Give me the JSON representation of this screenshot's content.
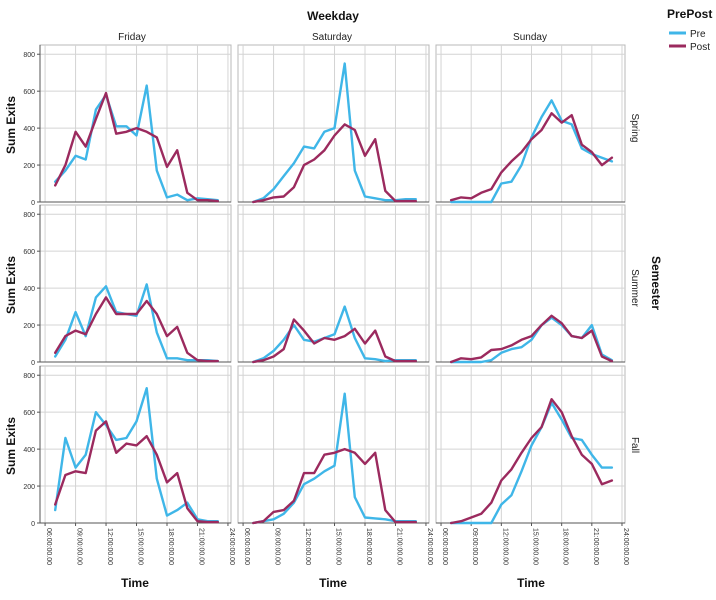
{
  "chart_data": {
    "type": "line",
    "title": "Weekday",
    "row_title": "Semester",
    "xlabel": "Time",
    "ylabel": "Sum Exits",
    "legend": {
      "title": "PrePost",
      "position": "top-right",
      "entries": [
        {
          "name": "Pre",
          "color": "#3fb6e8"
        },
        {
          "name": "Post",
          "color": "#9b2a5e"
        }
      ]
    },
    "columns": [
      "Friday",
      "Saturday",
      "Sunday"
    ],
    "rows": [
      "Spring",
      "Summer",
      "Fall"
    ],
    "ylim": [
      0,
      850
    ],
    "yticks": [
      0,
      200,
      400,
      600,
      800
    ],
    "ytick_labels": [
      "0",
      "200",
      "400",
      "600",
      "800"
    ],
    "xlim": [
      5.5,
      24.3
    ],
    "xticks": [
      6,
      9,
      12,
      15,
      18,
      21,
      24
    ],
    "xtick_labels": [
      "06:00:00.00",
      "09:00:00.00",
      "12:00:00.00",
      "15:00:00.00",
      "18:00:00.00",
      "21:00:00.00",
      "24:00:00.00"
    ],
    "x_hours": [
      7,
      8,
      9,
      10,
      11,
      12,
      13,
      14,
      15,
      16,
      17,
      18,
      19,
      20,
      21,
      22,
      23
    ],
    "panels": [
      {
        "row": "Spring",
        "col": "Friday",
        "series": [
          {
            "name": "Pre",
            "values": [
              110,
              170,
              250,
              230,
              500,
              580,
              410,
              410,
              360,
              630,
              170,
              25,
              40,
              10,
              20,
              15,
              10
            ]
          },
          {
            "name": "Post",
            "values": [
              90,
              200,
              380,
              300,
              450,
              590,
              370,
              380,
              400,
              380,
              350,
              190,
              280,
              50,
              10,
              10,
              5
            ]
          }
        ]
      },
      {
        "row": "Spring",
        "col": "Saturday",
        "series": [
          {
            "name": "Pre",
            "values": [
              0,
              20,
              70,
              140,
              210,
              300,
              290,
              380,
              400,
              750,
              170,
              30,
              20,
              10,
              10,
              15,
              15
            ]
          },
          {
            "name": "Post",
            "values": [
              0,
              10,
              25,
              30,
              80,
              200,
              230,
              280,
              360,
              420,
              390,
              250,
              340,
              60,
              5,
              5,
              5
            ]
          }
        ]
      },
      {
        "row": "Spring",
        "col": "Sunday",
        "series": [
          {
            "name": "Pre",
            "values": [
              0,
              0,
              0,
              0,
              0,
              100,
              110,
              200,
              350,
              460,
              550,
              440,
              420,
              290,
              260,
              240,
              220
            ]
          },
          {
            "name": "Post",
            "values": [
              10,
              25,
              20,
              50,
              70,
              160,
              220,
              270,
              340,
              390,
              480,
              430,
              470,
              310,
              270,
              200,
              240
            ]
          }
        ]
      },
      {
        "row": "Summer",
        "col": "Friday",
        "series": [
          {
            "name": "Pre",
            "values": [
              30,
              120,
              270,
              140,
              350,
              410,
              270,
              260,
              250,
              420,
              160,
              20,
              20,
              10,
              10,
              10,
              5
            ]
          },
          {
            "name": "Post",
            "values": [
              50,
              140,
              170,
              150,
              260,
              350,
              260,
              260,
              260,
              330,
              260,
              140,
              190,
              50,
              10,
              5,
              5
            ]
          }
        ]
      },
      {
        "row": "Summer",
        "col": "Saturday",
        "series": [
          {
            "name": "Pre",
            "values": [
              0,
              20,
              60,
              120,
              200,
              120,
              110,
              130,
              150,
              300,
              130,
              20,
              15,
              5,
              10,
              10,
              10
            ]
          },
          {
            "name": "Post",
            "values": [
              0,
              10,
              30,
              70,
              230,
              170,
              100,
              130,
              120,
              140,
              180,
              100,
              170,
              30,
              5,
              5,
              5
            ]
          }
        ]
      },
      {
        "row": "Summer",
        "col": "Sunday",
        "series": [
          {
            "name": "Pre",
            "values": [
              0,
              0,
              0,
              0,
              10,
              50,
              70,
              80,
              120,
              200,
              240,
              200,
              140,
              130,
              200,
              40,
              10
            ]
          },
          {
            "name": "Post",
            "values": [
              0,
              20,
              15,
              25,
              65,
              70,
              90,
              120,
              140,
              200,
              250,
              210,
              140,
              130,
              170,
              30,
              5
            ]
          }
        ]
      },
      {
        "row": "Fall",
        "col": "Friday",
        "series": [
          {
            "name": "Pre",
            "values": [
              70,
              460,
              300,
              370,
              600,
              530,
              450,
              460,
              550,
              730,
              240,
              40,
              70,
              110,
              20,
              10,
              10
            ]
          },
          {
            "name": "Post",
            "values": [
              100,
              260,
              280,
              270,
              500,
              550,
              380,
              430,
              420,
              470,
              370,
              220,
              270,
              80,
              10,
              5,
              5
            ]
          }
        ]
      },
      {
        "row": "Fall",
        "col": "Saturday",
        "series": [
          {
            "name": "Pre",
            "values": [
              0,
              10,
              20,
              50,
              110,
              210,
              240,
              280,
              310,
              700,
              140,
              30,
              25,
              20,
              10,
              10,
              10
            ]
          },
          {
            "name": "Post",
            "values": [
              0,
              10,
              60,
              70,
              120,
              270,
              270,
              370,
              380,
              400,
              380,
              320,
              380,
              70,
              5,
              5,
              5
            ]
          }
        ]
      },
      {
        "row": "Fall",
        "col": "Sunday",
        "series": [
          {
            "name": "Pre",
            "values": [
              0,
              0,
              0,
              0,
              0,
              100,
              150,
              280,
              420,
              520,
              650,
              560,
              460,
              450,
              370,
              300,
              300
            ]
          },
          {
            "name": "Post",
            "values": [
              0,
              10,
              30,
              50,
              110,
              230,
              290,
              380,
              460,
              520,
              670,
              600,
              470,
              370,
              320,
              210,
              230
            ]
          }
        ]
      }
    ]
  }
}
